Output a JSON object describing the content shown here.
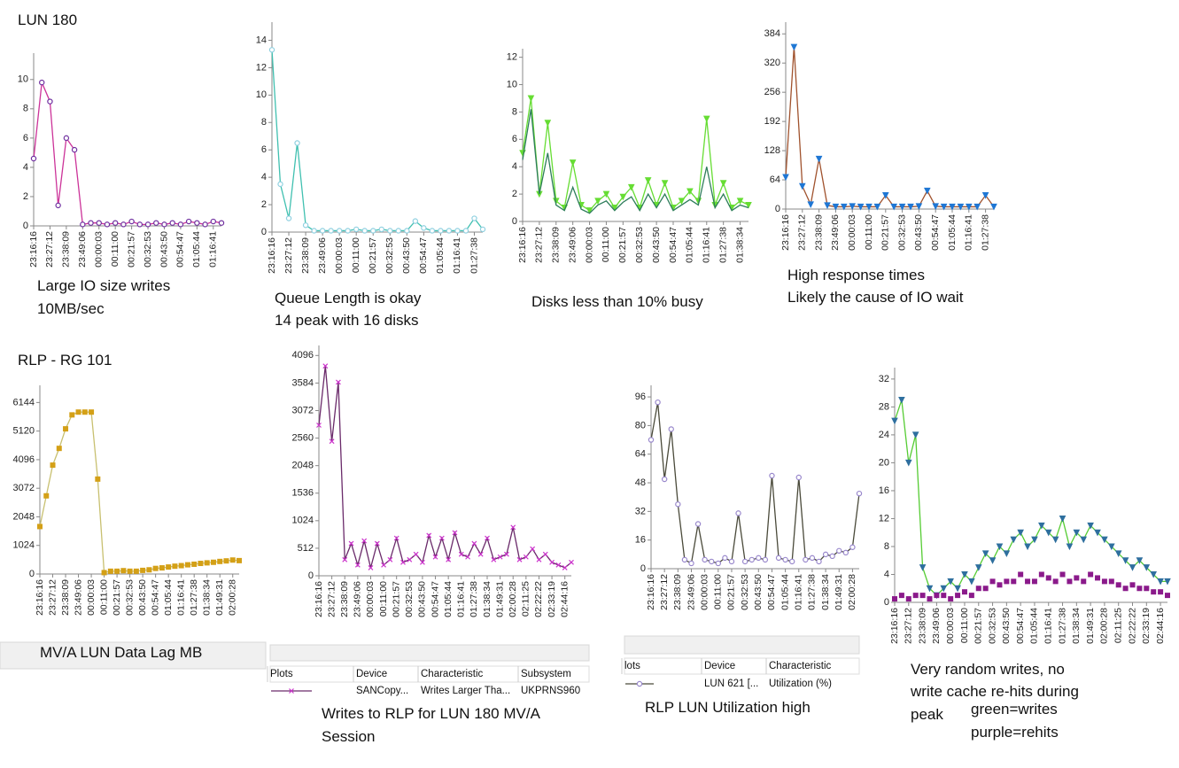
{
  "chart_data": [
    {
      "type": "line",
      "heading": "LUN 180",
      "categories": [
        "23:16:16",
        null,
        "23:27:12",
        null,
        "23:38:09",
        null,
        "23:49:06",
        null,
        "00:00:03",
        null,
        "00:11:00",
        null,
        "00:21:57",
        null,
        "00:32:53",
        null,
        "00:43:50",
        null,
        "00:54:47",
        null,
        "01:05:44",
        null,
        "01:16:41",
        null
      ],
      "series": [
        {
          "color": "#7030a0",
          "line_color": "#cc3399",
          "marker": "circle",
          "values": [
            4.6,
            9.8,
            8.5,
            1.4,
            6.0,
            5.2,
            0.1,
            0.2,
            0.2,
            0.1,
            0.2,
            0.1,
            0.3,
            0.1,
            0.1,
            0.2,
            0.1,
            0.2,
            0.1,
            0.3,
            0.2,
            0.1,
            0.3,
            0.2
          ]
        }
      ],
      "ylim": [
        0,
        11.5
      ],
      "yticks": [
        0,
        2,
        4,
        6,
        8,
        10
      ],
      "annotations": [
        "Large IO size writes",
        "10MB/sec"
      ]
    },
    {
      "type": "line",
      "categories": [
        "23:16:16",
        null,
        "23:27:12",
        null,
        "23:38:09",
        null,
        "23:49:06",
        null,
        "00:00:03",
        null,
        "00:11:00",
        null,
        "00:21:57",
        null,
        "00:32:53",
        null,
        "00:43:50",
        null,
        "00:54:47",
        null,
        "01:05:44",
        null,
        "01:16:41",
        null,
        "01:27:38",
        null
      ],
      "series": [
        {
          "color": "#8fd0e0",
          "line_color": "#40c0b0",
          "marker": "circle",
          "values": [
            13.3,
            3.5,
            1.0,
            6.5,
            0.5,
            0.1,
            0.1,
            0.1,
            0.1,
            0.1,
            0.2,
            0.1,
            0.1,
            0.2,
            0.1,
            0.1,
            0.1,
            0.8,
            0.3,
            0.1,
            0.1,
            0.1,
            0.1,
            0.1,
            1.0,
            0.2
          ]
        }
      ],
      "ylim": [
        0,
        15
      ],
      "yticks": [
        0,
        2,
        4,
        6,
        8,
        10,
        12,
        14
      ],
      "annotations": [
        "Queue Length is okay",
        "14 peak with 16 disks"
      ]
    },
    {
      "type": "line",
      "categories": [
        "23:16:16",
        null,
        "23:27:12",
        null,
        "23:38:09",
        null,
        "23:49:06",
        null,
        "00:00:03",
        null,
        "00:11:00",
        null,
        "00:21:57",
        null,
        "00:32:53",
        null,
        "00:43:50",
        null,
        "00:54:47",
        null,
        "01:05:44",
        null,
        "01:16:41",
        null,
        "01:27:38",
        null,
        "01:38:34",
        null
      ],
      "series": [
        {
          "color": "#66dd33",
          "line_color": "#66dd33",
          "marker": "triangle",
          "values": [
            5,
            9,
            2,
            7.2,
            1.5,
            1,
            4.3,
            1.2,
            0.8,
            1.5,
            2,
            1,
            1.8,
            2.5,
            1,
            3,
            1.2,
            2.8,
            1,
            1.5,
            2.2,
            1.5,
            7.5,
            1.2,
            2.8,
            1,
            1.5,
            1.2
          ]
        },
        {
          "color": "#2e7d5b",
          "line_color": "#2e7d5b",
          "marker": "none",
          "values": [
            4.5,
            8.2,
            2,
            5,
            1.2,
            0.8,
            2.5,
            0.9,
            0.6,
            1.2,
            1.5,
            0.8,
            1.4,
            1.8,
            0.8,
            2,
            1,
            2,
            0.8,
            1.2,
            1.6,
            1.2,
            4,
            1,
            2,
            0.8,
            1.2,
            1
          ]
        }
      ],
      "ylim": [
        0,
        12.3
      ],
      "yticks": [
        0,
        2,
        4,
        6,
        8,
        10,
        12
      ],
      "annotations": [
        "Disks less than 10% busy"
      ]
    },
    {
      "type": "line",
      "categories": [
        "23:16:16",
        null,
        "23:27:12",
        null,
        "23:38:09",
        null,
        "23:49:06",
        null,
        "00:00:03",
        null,
        "00:11:00",
        null,
        "00:21:57",
        null,
        "00:32:53",
        null,
        "00:43:50",
        null,
        "00:54:47",
        null,
        "01:05:44",
        null,
        "01:16:41",
        null,
        "01:27:38",
        null
      ],
      "series": [
        {
          "color": "#1f77d4",
          "line_color": "#a0522d",
          "marker": "triangle",
          "values": [
            70,
            355,
            50,
            10,
            110,
            8,
            5,
            5,
            6,
            5,
            5,
            5,
            30,
            5,
            5,
            5,
            6,
            40,
            6,
            5,
            5,
            5,
            5,
            5,
            30,
            5
          ]
        }
      ],
      "ylim": [
        0,
        400
      ],
      "yticks": [
        0,
        64,
        128,
        192,
        256,
        320,
        384
      ],
      "annotations": [
        "High response times",
        "Likely the cause of IO wait"
      ]
    },
    {
      "type": "line",
      "heading": "RLP - RG 101",
      "categories": [
        "23:16:16",
        null,
        "23:27:12",
        null,
        "23:38:09",
        null,
        "23:49:06",
        null,
        "00:00:03",
        null,
        "00:11:00",
        null,
        "00:21:57",
        null,
        "00:32:53",
        null,
        "00:43:50",
        null,
        "00:54:47",
        null,
        "01:05:44",
        null,
        "01:16:41",
        null,
        "01:27:38",
        null,
        "01:38:34",
        null,
        "01:49:31",
        null,
        "02:00:28",
        null
      ],
      "series": [
        {
          "color": "#d4a017",
          "line_color": "#c8c070",
          "marker": "square",
          "values": [
            1700,
            2800,
            3900,
            4500,
            5200,
            5700,
            5800,
            5800,
            5800,
            3400,
            50,
            100,
            100,
            120,
            100,
            100,
            130,
            150,
            200,
            220,
            250,
            280,
            300,
            330,
            350,
            380,
            400,
            420,
            450,
            470,
            500,
            480
          ]
        }
      ],
      "ylim": [
        0,
        6600
      ],
      "yticks": [
        0,
        1024,
        2048,
        3072,
        4096,
        5120,
        6144
      ],
      "annotations": [
        "MV/A LUN Data Lag MB"
      ]
    },
    {
      "type": "line",
      "categories": [
        "23:16:16",
        null,
        "23:27:12",
        null,
        "23:38:09",
        null,
        "23:49:06",
        null,
        "00:00:03",
        null,
        "00:11:00",
        null,
        "00:21:57",
        null,
        "00:32:53",
        null,
        "00:43:50",
        null,
        "00:54:47",
        null,
        "01:05:44",
        null,
        "01:16:41",
        null,
        "01:27:38",
        null,
        "01:38:34",
        null,
        "01:49:31",
        null,
        "02:00:28",
        null,
        "02:11:25",
        null,
        "02:22:22",
        null,
        "02:33:19",
        null,
        "02:44:16",
        null
      ],
      "series": [
        {
          "color": "#cc33cc",
          "line_color": "#6a2a6a",
          "marker": "x",
          "values": [
            2800,
            3900,
            2500,
            3600,
            300,
            600,
            200,
            650,
            150,
            600,
            200,
            300,
            700,
            250,
            300,
            400,
            250,
            750,
            350,
            700,
            300,
            800,
            400,
            350,
            600,
            400,
            700,
            300,
            350,
            400,
            900,
            300,
            350,
            500,
            300,
            400,
            250,
            200,
            150,
            250
          ]
        }
      ],
      "ylim": [
        0,
        4200
      ],
      "yticks": [
        0,
        512,
        1024,
        1536,
        2048,
        2560,
        3072,
        3584,
        4096
      ],
      "table": {
        "headers": [
          "Plots",
          "Device",
          "Characteristic",
          "Subsystem"
        ],
        "row": [
          "SANCopy...",
          "Writes Larger Tha...",
          "UKPRNS960"
        ]
      },
      "annotations": [
        "Writes to RLP for LUN 180 MV/A",
        "Session"
      ]
    },
    {
      "type": "line",
      "categories": [
        "23:16:16",
        null,
        "23:27:12",
        null,
        "23:38:09",
        null,
        "23:49:06",
        null,
        "00:00:03",
        null,
        "00:11:00",
        null,
        "00:21:57",
        null,
        "00:32:53",
        null,
        "00:43:50",
        null,
        "00:54:47",
        null,
        "01:05:44",
        null,
        "01:16:41",
        null,
        "01:27:38",
        null,
        "01:38:34",
        null,
        "01:49:31",
        null,
        "02:00:28",
        null
      ],
      "series": [
        {
          "color": "#9988cc",
          "line_color": "#4a4a3a",
          "marker": "circle",
          "values": [
            72,
            93,
            50,
            78,
            36,
            5,
            3,
            25,
            5,
            4,
            3,
            6,
            4,
            31,
            4,
            5,
            6,
            5,
            52,
            6,
            5,
            4,
            51,
            5,
            6,
            4,
            8,
            7,
            10,
            9,
            12,
            42
          ]
        }
      ],
      "ylim": [
        0,
        100
      ],
      "yticks": [
        0,
        16,
        32,
        48,
        64,
        80,
        96
      ],
      "table": {
        "headers": [
          "lots",
          "Device",
          "Characteristic"
        ],
        "row": [
          "LUN 621 [...",
          "Utilization (%)"
        ]
      },
      "annotations": [
        "RLP LUN Utilization high"
      ]
    },
    {
      "type": "line",
      "categories": [
        "23:16:16",
        null,
        "23:27:12",
        null,
        "23:38:09",
        null,
        "23:49:06",
        null,
        "00:00:03",
        null,
        "00:11:00",
        null,
        "00:21:57",
        null,
        "00:32:53",
        null,
        "00:43:50",
        null,
        "00:54:47",
        null,
        "01:05:44",
        null,
        "01:16:41",
        null,
        "01:27:38",
        null,
        "01:38:34",
        null,
        "01:49:31",
        null,
        "02:00:28",
        null,
        "02:11:25",
        null,
        "02:22:22",
        null,
        "02:33:19",
        null,
        "02:44:16",
        null
      ],
      "series": [
        {
          "color": "#2e6f9e",
          "line_color": "#55cc33",
          "marker": "triangle",
          "values": [
            26,
            29,
            20,
            24,
            5,
            2,
            1,
            2,
            3,
            2,
            4,
            3,
            5,
            7,
            6,
            8,
            7,
            9,
            10,
            8,
            9,
            11,
            10,
            9,
            12,
            8,
            10,
            9,
            11,
            10,
            9,
            8,
            7,
            6,
            5,
            6,
            5,
            4,
            3,
            3
          ]
        },
        {
          "color": "#8b1a8b",
          "line_color": "none",
          "marker": "square",
          "values": [
            0.5,
            1,
            0.5,
            1,
            1,
            0.5,
            1,
            1,
            0.5,
            1,
            1.5,
            1,
            2,
            2,
            3,
            2.5,
            3,
            3,
            4,
            3,
            3,
            4,
            3.5,
            3,
            4,
            3,
            3.5,
            3,
            4,
            3.5,
            3,
            3,
            2.5,
            2,
            2.5,
            2,
            2,
            1.5,
            1.5,
            1
          ]
        }
      ],
      "ylim": [
        0,
        33
      ],
      "yticks": [
        0,
        4,
        8,
        12,
        16,
        20,
        24,
        28,
        32
      ],
      "annotations": [
        "Very random writes, no",
        "write cache re-hits during",
        "peak",
        "green=writes",
        "purple=rehits"
      ]
    }
  ]
}
